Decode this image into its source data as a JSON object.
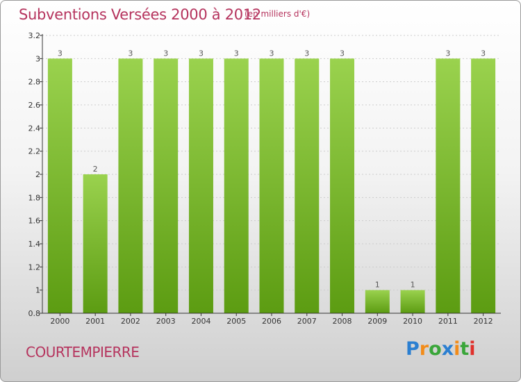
{
  "header": {
    "title": "Subventions Versées 2000 à 2012",
    "unit": "(en milliers d'€)"
  },
  "footer": {
    "commune": "COURTEMPIERRE",
    "logo": {
      "letters": [
        "P",
        "r",
        "o",
        "x",
        "i",
        "t",
        "i"
      ],
      "colors": [
        "#2b7fd1",
        "#f28c1a",
        "#3aa63a",
        "#2b7fd1",
        "#f28c1a",
        "#3aa63a",
        "#e0302b"
      ]
    }
  },
  "colors": {
    "bar_light": "#9ad24e",
    "bar_dark": "#5c9c12",
    "label": "#555555",
    "axis": "#333333",
    "grid": "#cccccc"
  },
  "chart_data": {
    "type": "bar",
    "title": "Subventions Versées 2000 à 2012",
    "categories": [
      "2000",
      "2001",
      "2002",
      "2003",
      "2004",
      "2005",
      "2006",
      "2007",
      "2008",
      "2009",
      "2010",
      "2011",
      "2012"
    ],
    "values": [
      3,
      2,
      3,
      3,
      3,
      3,
      3,
      3,
      3,
      1,
      1,
      3,
      3
    ],
    "data_labels": [
      "3",
      "2",
      "3",
      "3",
      "3",
      "3",
      "3",
      "3",
      "3",
      "1",
      "1",
      "3",
      "3"
    ],
    "ylim": [
      0.8,
      3.2
    ],
    "yticks": [
      0.8,
      1,
      1.2,
      1.4,
      1.6,
      1.8,
      2,
      2.2,
      2.4,
      2.6,
      2.8,
      3,
      3.2
    ],
    "ytick_labels": [
      "0.8",
      "1",
      "1.2",
      "1.4",
      "1.6",
      "1.8",
      "2",
      "2.2",
      "2.4",
      "2.6",
      "2.8",
      "3",
      "3.2"
    ],
    "grid": true
  }
}
